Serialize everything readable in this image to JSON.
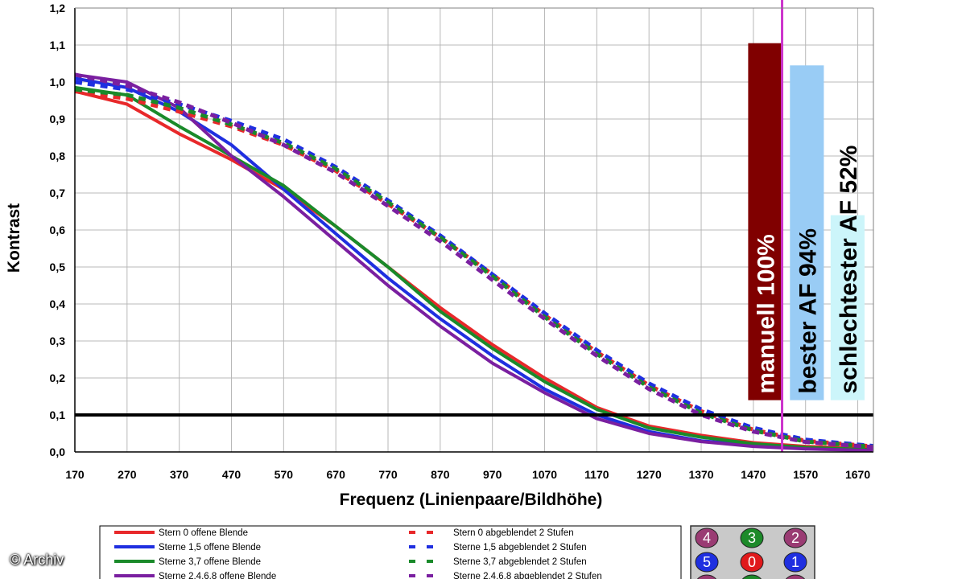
{
  "chart_data": {
    "type": "line",
    "xlabel": "Frequenz (Linienpaare/Bildhöhe)",
    "ylabel": "Kontrast",
    "xlim": [
      170,
      1700
    ],
    "ylim": [
      0,
      1.2
    ],
    "xticks": [
      "170",
      "270",
      "370",
      "470",
      "570",
      "670",
      "770",
      "870",
      "970",
      "1070",
      "1170",
      "1270",
      "1370",
      "1470",
      "1570",
      "1670"
    ],
    "yticks": [
      "0,0",
      "0,1",
      "0,2",
      "0,3",
      "0,4",
      "0,5",
      "0,6",
      "0,7",
      "0,8",
      "0,9",
      "1,0",
      "1,1",
      "1,2"
    ],
    "reference_line": {
      "y": 0.1,
      "color": "#000000"
    },
    "marker_line": {
      "x": 1525,
      "color": "#cc33cc"
    },
    "series": [
      {
        "name": "Stern 0 offene Blende",
        "color": "#e8282a",
        "dash": false,
        "x": [
          170,
          270,
          370,
          470,
          570,
          670,
          770,
          870,
          970,
          1070,
          1170,
          1270,
          1370,
          1470,
          1570,
          1700
        ],
        "y": [
          0.975,
          0.94,
          0.86,
          0.79,
          0.71,
          0.61,
          0.5,
          0.39,
          0.29,
          0.2,
          0.12,
          0.07,
          0.045,
          0.025,
          0.015,
          0.008
        ]
      },
      {
        "name": "Sterne 1,5 offene Blende",
        "color": "#1f2fe0",
        "dash": false,
        "x": [
          170,
          270,
          370,
          470,
          570,
          670,
          770,
          870,
          970,
          1070,
          1170,
          1270,
          1370,
          1470,
          1570,
          1700
        ],
        "y": [
          1.01,
          0.985,
          0.92,
          0.83,
          0.71,
          0.59,
          0.47,
          0.36,
          0.26,
          0.17,
          0.1,
          0.055,
          0.03,
          0.018,
          0.01,
          0.005
        ]
      },
      {
        "name": "Sterne 3,7 offene Blende",
        "color": "#1a8a2a",
        "dash": false,
        "x": [
          170,
          270,
          370,
          470,
          570,
          670,
          770,
          870,
          970,
          1070,
          1170,
          1270,
          1370,
          1470,
          1570,
          1700
        ],
        "y": [
          0.985,
          0.965,
          0.88,
          0.8,
          0.72,
          0.61,
          0.5,
          0.38,
          0.28,
          0.19,
          0.115,
          0.065,
          0.04,
          0.022,
          0.012,
          0.006
        ]
      },
      {
        "name": "Sterne 2,4,6,8 offene Blende",
        "color": "#7a1fa0",
        "dash": false,
        "x": [
          170,
          270,
          370,
          470,
          570,
          670,
          770,
          870,
          970,
          1070,
          1170,
          1270,
          1370,
          1470,
          1570,
          1700
        ],
        "y": [
          1.02,
          1.0,
          0.93,
          0.8,
          0.69,
          0.57,
          0.45,
          0.34,
          0.24,
          0.16,
          0.09,
          0.05,
          0.028,
          0.015,
          0.008,
          0.004
        ]
      },
      {
        "name": "Stern 0 abgeblendet 2 Stufen",
        "color": "#e8282a",
        "dash": true,
        "x": [
          170,
          270,
          370,
          470,
          570,
          670,
          770,
          870,
          970,
          1070,
          1170,
          1270,
          1370,
          1470,
          1570,
          1700
        ],
        "y": [
          0.975,
          0.955,
          0.92,
          0.88,
          0.83,
          0.76,
          0.67,
          0.58,
          0.48,
          0.37,
          0.27,
          0.18,
          0.11,
          0.06,
          0.03,
          0.015
        ]
      },
      {
        "name": "Sterne 1,5 abgeblendet 2 Stufen",
        "color": "#1f2fe0",
        "dash": true,
        "x": [
          170,
          270,
          370,
          470,
          570,
          670,
          770,
          870,
          970,
          1070,
          1170,
          1270,
          1370,
          1470,
          1570,
          1700
        ],
        "y": [
          1.0,
          0.98,
          0.94,
          0.895,
          0.845,
          0.77,
          0.68,
          0.585,
          0.48,
          0.375,
          0.275,
          0.185,
          0.115,
          0.065,
          0.033,
          0.016
        ]
      },
      {
        "name": "Sterne 3,7 abgeblendet 2 Stufen",
        "color": "#1a8a2a",
        "dash": true,
        "x": [
          170,
          270,
          370,
          470,
          570,
          670,
          770,
          870,
          970,
          1070,
          1170,
          1270,
          1370,
          1470,
          1570,
          1700
        ],
        "y": [
          0.98,
          0.965,
          0.93,
          0.885,
          0.835,
          0.765,
          0.675,
          0.58,
          0.475,
          0.365,
          0.265,
          0.175,
          0.105,
          0.058,
          0.028,
          0.014
        ]
      },
      {
        "name": "Sterne 2,4,6,8 abgeblendet 2 Stufen",
        "color": "#7a1fa0",
        "dash": true,
        "x": [
          170,
          270,
          370,
          470,
          570,
          670,
          770,
          870,
          970,
          1070,
          1170,
          1270,
          1370,
          1470,
          1570,
          1700
        ],
        "y": [
          1.02,
          0.99,
          0.945,
          0.89,
          0.83,
          0.755,
          0.665,
          0.57,
          0.465,
          0.36,
          0.26,
          0.17,
          0.1,
          0.055,
          0.027,
          0.013
        ]
      }
    ],
    "bars": [
      {
        "label": "manuell 100%",
        "x_from": 1460,
        "x_to": 1525,
        "y_from": 0.14,
        "y_to": 1.105,
        "fill": "#800000",
        "text_color": "#ffffff"
      },
      {
        "label": "bester AF 94%",
        "x_from": 1540,
        "x_to": 1605,
        "y_from": 0.14,
        "y_to": 1.045,
        "fill": "#99ccf5",
        "text_color": "#000000"
      },
      {
        "label": "schlechtester AF 52%",
        "x_from": 1618,
        "x_to": 1683,
        "y_from": 0.14,
        "y_to": 0.64,
        "fill": "#ccf5fa",
        "text_color": "#000000"
      }
    ]
  },
  "star_grid": {
    "cells": [
      {
        "label": "4",
        "color": "#9a3b73"
      },
      {
        "label": "3",
        "color": "#1d8a2a"
      },
      {
        "label": "2",
        "color": "#9a3b73"
      },
      {
        "label": "5",
        "color": "#1f2fe0"
      },
      {
        "label": "0",
        "color": "#e0191b"
      },
      {
        "label": "1",
        "color": "#1f2fe0"
      }
    ]
  },
  "copyright": "© Archiv"
}
